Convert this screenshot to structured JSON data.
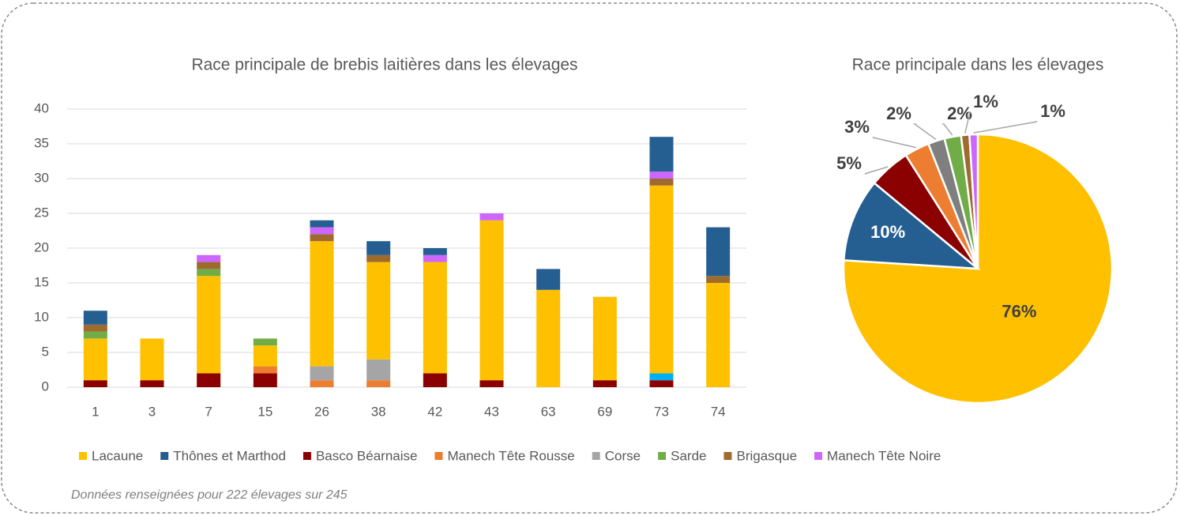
{
  "chart_data": [
    {
      "type": "bar",
      "stacked": true,
      "title": "Race principale de brebis laitières dans les élevages",
      "categories": [
        "1",
        "3",
        "7",
        "15",
        "26",
        "38",
        "42",
        "43",
        "63",
        "69",
        "73",
        "74"
      ],
      "series": [
        {
          "name": "Lacaune",
          "color": "#FFC000",
          "values": [
            6,
            6,
            14,
            3,
            18,
            14,
            16,
            23,
            14,
            12,
            27,
            15
          ]
        },
        {
          "name": "Thônes et Marthod",
          "color": "#255E91",
          "values": [
            2,
            0,
            0,
            0,
            1,
            2,
            1,
            0,
            3,
            0,
            5,
            7
          ]
        },
        {
          "name": "Basco Béarnaise",
          "color": "#8B0000",
          "values": [
            1,
            1,
            2,
            2,
            0,
            0,
            2,
            1,
            0,
            1,
            1,
            0
          ]
        },
        {
          "name": "Manech Tête Rousse",
          "color": "#ED7D31",
          "values": [
            0,
            0,
            0,
            1,
            1,
            1,
            0,
            0,
            0,
            0,
            0,
            0
          ]
        },
        {
          "name": "Corse",
          "color": "#A5A5A5",
          "values": [
            0,
            0,
            0,
            0,
            2,
            3,
            0,
            0,
            0,
            0,
            0,
            0
          ]
        },
        {
          "name": "Sarde",
          "color": "#70AD47",
          "values": [
            1,
            0,
            1,
            1,
            0,
            0,
            0,
            0,
            0,
            0,
            0,
            0
          ]
        },
        {
          "name": "Brigasque",
          "color": "#9E6A2D",
          "values": [
            1,
            0,
            1,
            0,
            1,
            1,
            0,
            0,
            0,
            0,
            1,
            1
          ]
        },
        {
          "name": "Manech Tête Noire",
          "color": "#CC66FF",
          "values": [
            0,
            0,
            1,
            0,
            1,
            0,
            1,
            1,
            0,
            0,
            1,
            0
          ]
        },
        {
          "color": "#00B0F0",
          "values": [
            0,
            0,
            0,
            0,
            0,
            0,
            0,
            0,
            0,
            0,
            1,
            0
          ]
        }
      ],
      "ylim": [
        0,
        40
      ],
      "yticks": [
        0,
        5,
        10,
        15,
        20,
        25,
        30,
        35,
        40
      ],
      "grid": true,
      "legend": "bottom"
    },
    {
      "type": "pie",
      "title": "Race principale dans les élevages",
      "values": [
        76,
        10,
        5,
        3,
        2,
        2,
        1,
        1
      ],
      "value_labels": [
        "76%",
        "10%",
        "5%",
        "3%",
        "2%",
        "2%",
        "1%",
        "1%"
      ],
      "colors": [
        "#FFC000",
        "#255E91",
        "#8B0000",
        "#ED7D31",
        "#7F7F7F",
        "#70AD47",
        "#9E6A2D",
        "#CC66FF"
      ]
    }
  ],
  "footnote": "Données renseignées pour 222 élevages sur 245"
}
